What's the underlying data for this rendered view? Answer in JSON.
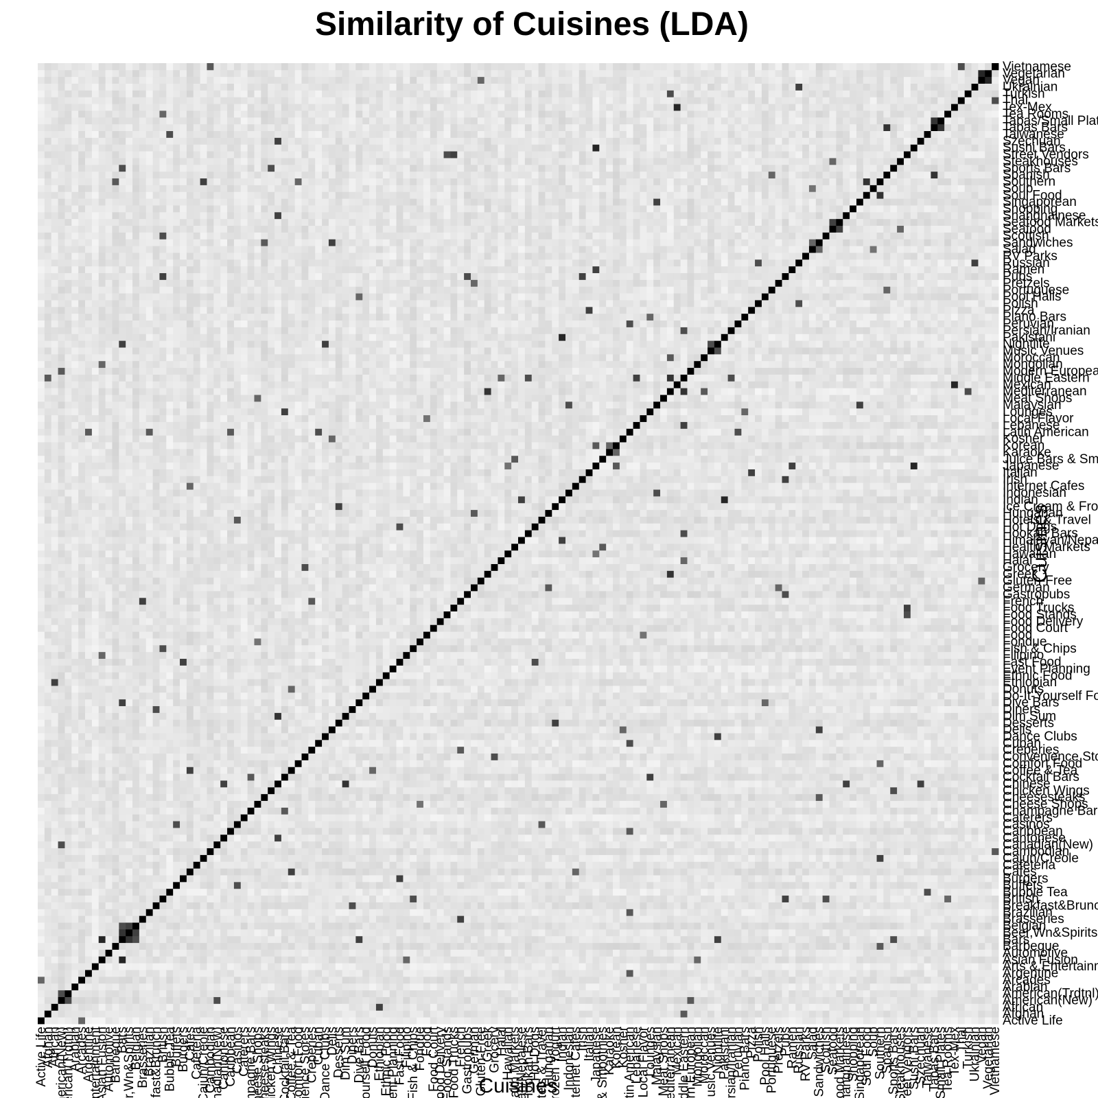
{
  "chart_data": {
    "type": "heatmap",
    "title": "Similarity of Cuisines (LDA)",
    "xlabel": "Cuisines",
    "ylabel": "Cuisines",
    "color_low": "#ffffff",
    "color_high": "#000000",
    "value_range": [
      0,
      1
    ],
    "diagonal_value": 1,
    "categories": [
      "Active Life",
      "Afghan",
      "African",
      "American(New)",
      "American(Trdtnl)",
      "Arabian",
      "Arcades",
      "Argentine",
      "Arts & Entertainment",
      "Asian Fusion",
      "Automotive",
      "Barbeque",
      "Bars",
      "Beer,Wn&Spirits",
      "Belgian",
      "Brasseries",
      "Brazilian",
      "Breakfast&Brunch",
      "British",
      "Bubble Tea",
      "Buffets",
      "Burgers",
      "Cafes",
      "Cafeteria",
      "Cajun/Creole",
      "Cambodian",
      "Canadian(New)",
      "Cantonese",
      "Caribbean",
      "Casinos",
      "Caterers",
      "Champagne Bars",
      "Cheese Shops",
      "Cheesesteaks",
      "Chicken Wings",
      "Chinese",
      "Cocktail Bars",
      "Coffee & Tea",
      "Comfort Food",
      "Convenience Stores",
      "Creperies",
      "Cuban",
      "Dance Clubs",
      "Delis",
      "Desserts",
      "Dim Sum",
      "Diners",
      "Dive Bars",
      "Do-It-Yourself Food",
      "Donuts",
      "Ethiopian",
      "Ethnic Food",
      "Event Planning",
      "Fast Food",
      "Filipino",
      "Fish & Chips",
      "Fondue",
      "Food",
      "Food Court",
      "Food Delivery",
      "Food Stands",
      "Food Trucks",
      "French",
      "Gastropubs",
      "German",
      "Gluten-Free",
      "Greek",
      "Grocery",
      "Halal",
      "Hawaiian",
      "Health Markets",
      "Himalayan/Nepalese",
      "Hookah Bars",
      "Hot Dogs",
      "Hotels & Travel",
      "Hungarian",
      "Ice Cream & Frozen Yogurt",
      "Indian",
      "Indonesian",
      "Internet Cafes",
      "Irish",
      "Italian",
      "Japanese",
      "Juice Bars & Smoothies",
      "Karaoke",
      "Korean",
      "Kosher",
      "Latin American",
      "Lebanese",
      "Local Flavor",
      "Lounges",
      "Malaysian",
      "Meat Shops",
      "Mediterranean",
      "Mexican",
      "Middle Eastern",
      "Modern European",
      "Mongolian",
      "Moroccan",
      "Music Venues",
      "Nightlife",
      "Pakistani",
      "Persian/Iranian",
      "Peruvian",
      "Piano Bars",
      "Pizza",
      "Polish",
      "Pool Halls",
      "Portuguese",
      "Pretzels",
      "Pubs",
      "Ramen",
      "Russian",
      "RV Parks",
      "Salad",
      "Sandwiches",
      "Scottish",
      "Seafood",
      "Seafood Markets",
      "Shanghainese",
      "Shopping",
      "Singaporean",
      "Soul Food",
      "Soup",
      "Southern",
      "Spanish",
      "Sports Bars",
      "Steakhouses",
      "Street Vendors",
      "Sushi Bars",
      "Szechuan",
      "Taiwanese",
      "Tapas Bars",
      "Tapas/Small Plates",
      "Tea Rooms",
      "Tex-Mex",
      "Thai",
      "Turkish",
      "Ukrainian",
      "Vegan",
      "Vegetarian",
      "Vietnamese"
    ],
    "notable_pairs": [
      [
        "Asian Fusion",
        "Bars",
        0.85
      ],
      [
        "Bars",
        "Beer,Wn&Spirits",
        0.8
      ],
      [
        "Beer,Wn&Spirits",
        "Belgian",
        0.75
      ],
      [
        "Bars",
        "Belgian",
        0.7
      ],
      [
        "Cafes",
        "Coffee & Tea",
        0.75
      ],
      [
        "Chinese",
        "Dim Sum",
        0.8
      ],
      [
        "Japanese",
        "Sushi Bars",
        0.85
      ],
      [
        "Mexican",
        "Tex-Mex",
        0.85
      ],
      [
        "Thai",
        "Vietnamese",
        0.7
      ],
      [
        "Indian",
        "Pakistani",
        0.85
      ],
      [
        "Vegan",
        "Vegetarian",
        0.85
      ],
      [
        "Middle Eastern",
        "Mediterranean",
        0.8
      ],
      [
        "Greek",
        "Mediterranean",
        0.8
      ],
      [
        "Lebanese",
        "Middle Eastern",
        0.75
      ],
      [
        "Persian/Iranian",
        "Middle Eastern",
        0.7
      ],
      [
        "Turkish",
        "Mediterranean",
        0.7
      ],
      [
        "Korean",
        "Japanese",
        0.65
      ],
      [
        "Ramen",
        "Japanese",
        0.75
      ],
      [
        "Szechuan",
        "Chinese",
        0.75
      ],
      [
        "Cantonese",
        "Chinese",
        0.75
      ],
      [
        "Shanghainese",
        "Chinese",
        0.75
      ],
      [
        "Taiwanese",
        "Bubble Tea",
        0.7
      ],
      [
        "Pubs",
        "Irish",
        0.75
      ],
      [
        "Pubs",
        "British",
        0.75
      ],
      [
        "Gastropubs",
        "Pubs",
        0.7
      ],
      [
        "Sports Bars",
        "Bars",
        0.7
      ],
      [
        "Dive Bars",
        "Bars",
        0.75
      ],
      [
        "Cocktail Bars",
        "Lounges",
        0.75
      ],
      [
        "Nightlife",
        "Bars",
        0.75
      ],
      [
        "Dance Clubs",
        "Nightlife",
        0.75
      ],
      [
        "Music Venues",
        "Nightlife",
        0.7
      ],
      [
        "Hookah Bars",
        "Middle Eastern",
        0.7
      ],
      [
        "Burgers",
        "Fast Food",
        0.75
      ],
      [
        "Hot Dogs",
        "Fast Food",
        0.7
      ],
      [
        "Chicken Wings",
        "Sports Bars",
        0.7
      ],
      [
        "Pizza",
        "Italian",
        0.75
      ],
      [
        "Sandwiches",
        "Delis",
        0.75
      ],
      [
        "Salad",
        "Sandwiches",
        0.6
      ],
      [
        "Seafood",
        "Seafood Markets",
        0.75
      ],
      [
        "Steakhouses",
        "Seafood",
        0.6
      ],
      [
        "Southern",
        "Soul Food",
        0.8
      ],
      [
        "Cajun/Creole",
        "Southern",
        0.75
      ],
      [
        "Barbeque",
        "Southern",
        0.65
      ],
      [
        "Breakfast&Brunch",
        "Diners",
        0.7
      ],
      [
        "Creperies",
        "French",
        0.65
      ],
      [
        "Brasseries",
        "French",
        0.75
      ],
      [
        "Spanish",
        "Tapas Bars",
        0.8
      ],
      [
        "Tapas Bars",
        "Tapas/Small Plates",
        0.8
      ],
      [
        "Latin American",
        "Cuban",
        0.7
      ],
      [
        "Peruvian",
        "Latin American",
        0.7
      ],
      [
        "Argentine",
        "Latin American",
        0.65
      ],
      [
        "Brazilian",
        "Latin American",
        0.65
      ],
      [
        "Caribbean",
        "Latin American",
        0.65
      ],
      [
        "Hawaiian",
        "Japanese",
        0.55
      ],
      [
        "Ethiopian",
        "African",
        0.75
      ],
      [
        "Moroccan",
        "Mediterranean",
        0.65
      ],
      [
        "Afghan",
        "Middle Eastern",
        0.65
      ],
      [
        "Himalayan/Nepalese",
        "Indian",
        0.75
      ],
      [
        "Malaysian",
        "Singaporean",
        0.75
      ],
      [
        "Indonesian",
        "Malaysian",
        0.7
      ],
      [
        "Filipino",
        "Asian Fusion",
        0.6
      ],
      [
        "Cambodian",
        "Vietnamese",
        0.65
      ],
      [
        "Mongolian",
        "Asian Fusion",
        0.6
      ],
      [
        "Polish",
        "Russian",
        0.7
      ],
      [
        "Ukrainian",
        "Russian",
        0.75
      ],
      [
        "Hungarian",
        "German",
        0.65
      ],
      [
        "Donuts",
        "Coffee & Tea",
        0.6
      ],
      [
        "Desserts",
        "Ice Cream & Frozen Yogurt",
        0.75
      ],
      [
        "Juice Bars & Smoothies",
        "Health Markets",
        0.65
      ],
      [
        "Gluten-Free",
        "Vegan",
        0.6
      ],
      [
        "Food Trucks",
        "Street Vendors",
        0.75
      ],
      [
        "Food Stands",
        "Street Vendors",
        0.7
      ],
      [
        "Grocery",
        "Convenience Stores",
        0.7
      ],
      [
        "Casinos",
        "Buffets",
        0.7
      ],
      [
        "Hotels & Travel",
        "Casinos",
        0.65
      ],
      [
        "Arcades",
        "Active Life",
        0.6
      ],
      [
        "Karaoke",
        "Korean",
        0.6
      ],
      [
        "Pool Halls",
        "Dive Bars",
        0.6
      ],
      [
        "Piano Bars",
        "Lounges",
        0.6
      ],
      [
        "Champagne Bars",
        "Cocktail Bars",
        0.65
      ],
      [
        "Cheese Shops",
        "Meat Shops",
        0.6
      ],
      [
        "Kosher",
        "Delis",
        0.6
      ],
      [
        "Halal",
        "Middle Eastern",
        0.6
      ],
      [
        "Tea Rooms",
        "British",
        0.6
      ],
      [
        "Pretzels",
        "German",
        0.6
      ],
      [
        "Fish & Chips",
        "British",
        0.7
      ],
      [
        "Scottish",
        "British",
        0.7
      ],
      [
        "Canadian(New)",
        "American(New)",
        0.7
      ],
      [
        "American(New)",
        "American(Trdtnl)",
        0.7
      ],
      [
        "Modern European",
        "American(New)",
        0.65
      ],
      [
        "Fondue",
        "Cheese Shops",
        0.55
      ],
      [
        "Cheesesteaks",
        "Sandwiches",
        0.65
      ],
      [
        "Soup",
        "Salad",
        0.55
      ],
      [
        "Comfort Food",
        "Southern",
        0.6
      ],
      [
        "Local Flavor",
        "Food",
        0.55
      ],
      [
        "Internet Cafes",
        "Cafes",
        0.6
      ],
      [
        "Portuguese",
        "Spanish",
        0.6
      ]
    ]
  }
}
